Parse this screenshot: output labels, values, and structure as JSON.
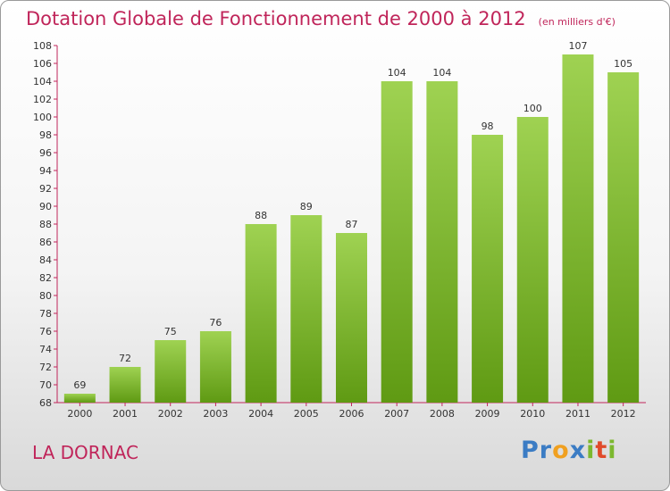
{
  "title": "Dotation Globale de Fonctionnement de 2000 à 2012",
  "unit_note": "(en milliers d'€)",
  "commune": "LA DORNAC",
  "logo": {
    "letters": [
      {
        "ch": "P",
        "color": "#3b7cc4"
      },
      {
        "ch": "r",
        "color": "#3b7cc4"
      },
      {
        "ch": "o",
        "color": "#f0a020"
      },
      {
        "ch": "x",
        "color": "#3b7cc4"
      },
      {
        "ch": "i",
        "color": "#7cb82f"
      },
      {
        "ch": "t",
        "color": "#e04a2a"
      },
      {
        "ch": "i",
        "color": "#7cb82f"
      }
    ]
  },
  "colors": {
    "accent": "#c0255a",
    "bar_light": "#9fd252",
    "bar_dark": "#5f9a13",
    "axis": "#c0255a",
    "text": "#333333"
  },
  "chart_data": {
    "type": "bar",
    "categories": [
      "2000",
      "2001",
      "2002",
      "2003",
      "2004",
      "2005",
      "2006",
      "2007",
      "2008",
      "2009",
      "2010",
      "2011",
      "2012"
    ],
    "values": [
      69,
      72,
      75,
      76,
      88,
      89,
      87,
      104,
      104,
      98,
      100,
      107,
      105
    ],
    "ylim": [
      68,
      108
    ],
    "yticks": [
      68,
      70,
      72,
      74,
      76,
      78,
      80,
      82,
      84,
      86,
      88,
      90,
      92,
      94,
      96,
      98,
      100,
      102,
      104,
      106,
      108
    ],
    "grid": false
  }
}
